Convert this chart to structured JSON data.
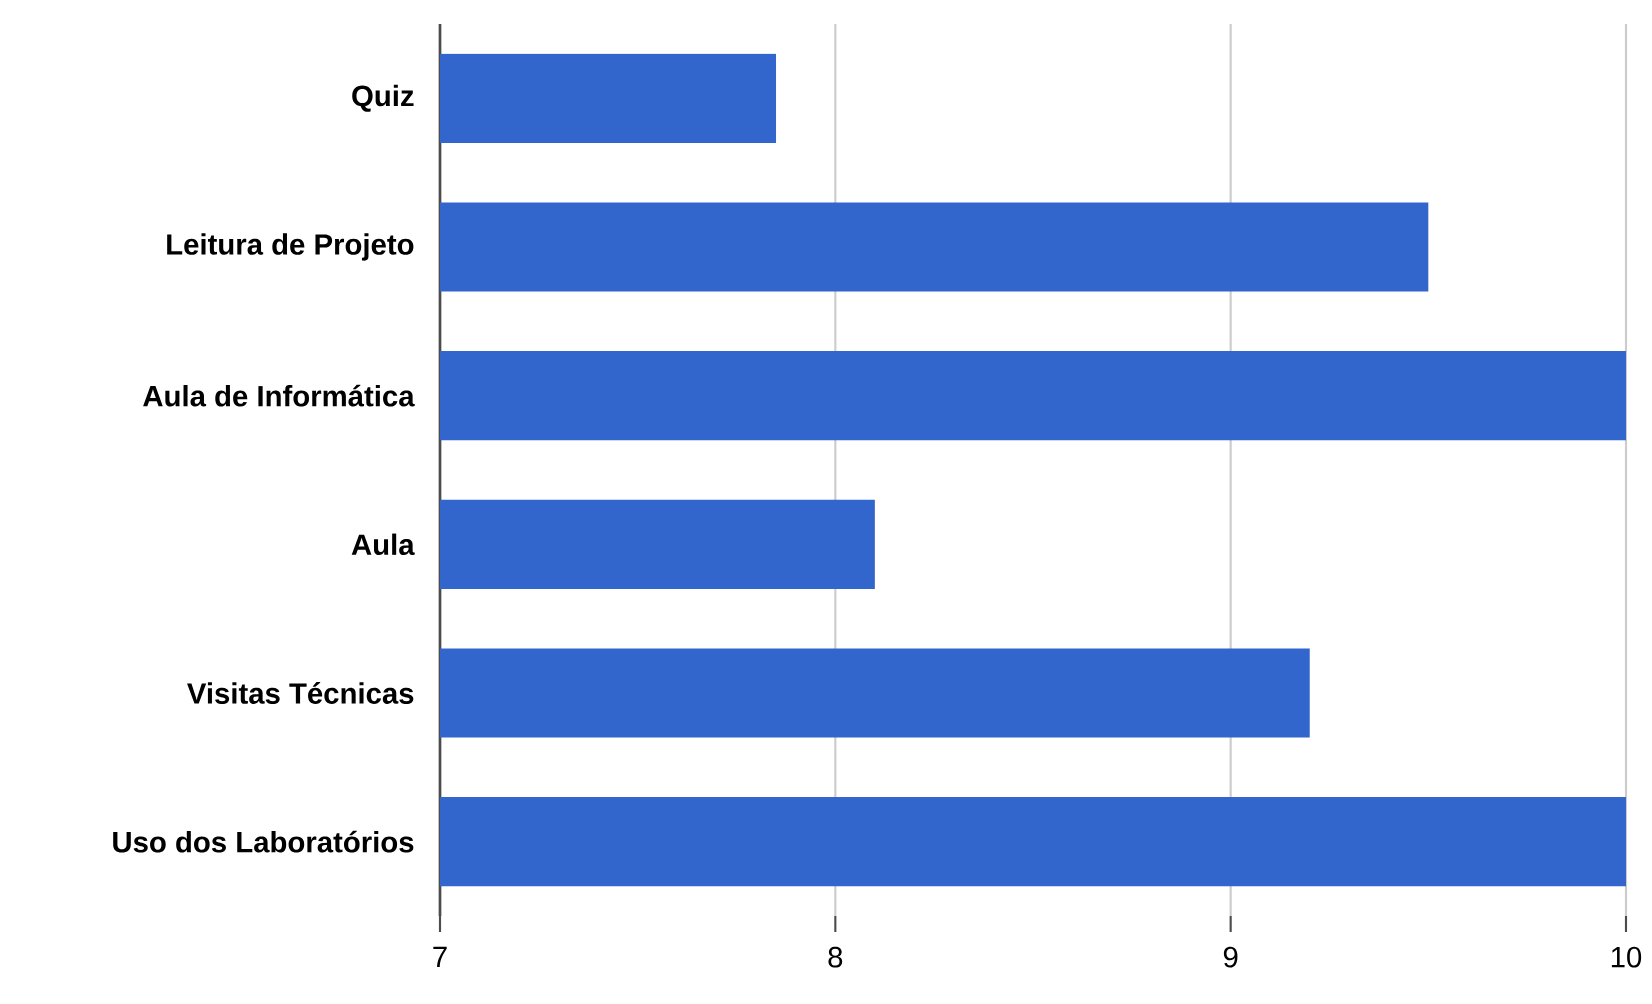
{
  "chart_data": {
    "type": "bar",
    "orientation": "horizontal",
    "categories": [
      "Quiz",
      "Leitura de Projeto",
      "Aula de Informática",
      "Aula",
      "Visitas Técnicas",
      "Uso dos Laboratórios"
    ],
    "values": [
      7.85,
      9.5,
      10,
      8.1,
      9.2,
      10
    ],
    "color": "#3366cc",
    "xlim": [
      7,
      10
    ],
    "xticks": [
      7,
      8,
      9,
      10
    ],
    "grid": "x"
  }
}
